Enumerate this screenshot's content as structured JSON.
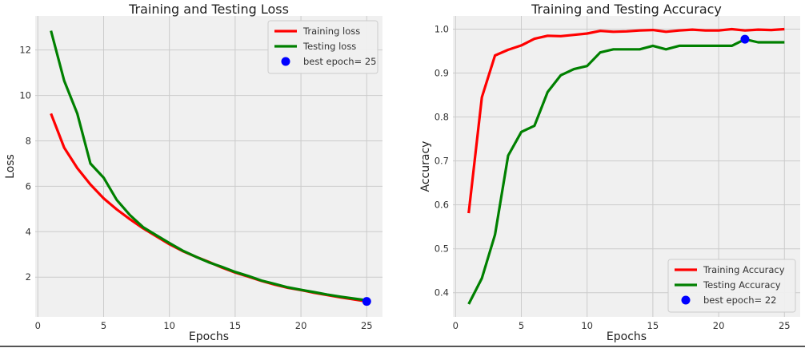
{
  "chart_data": [
    {
      "type": "line",
      "title": "Training and Testing Loss",
      "xlabel": "Epochs",
      "ylabel": "Loss",
      "xlim": [
        -0.2,
        26.2
      ],
      "ylim": [
        0.25,
        13.5
      ],
      "xticks": [
        0,
        5,
        10,
        15,
        20,
        25
      ],
      "yticks": [
        2,
        4,
        6,
        8,
        10,
        12
      ],
      "grid": true,
      "legend_position": "top-right",
      "x": [
        1,
        2,
        3,
        4,
        5,
        6,
        7,
        8,
        9,
        10,
        11,
        12,
        13,
        14,
        15,
        16,
        17,
        18,
        19,
        20,
        21,
        22,
        23,
        24,
        25
      ],
      "series": [
        {
          "name": "Training loss",
          "color": "#ff0000",
          "values": [
            9.2,
            7.7,
            6.8,
            6.08,
            5.47,
            4.98,
            4.55,
            4.15,
            3.8,
            3.45,
            3.15,
            2.9,
            2.67,
            2.42,
            2.2,
            2.02,
            1.83,
            1.67,
            1.53,
            1.43,
            1.31,
            1.21,
            1.11,
            1.02,
            0.93
          ]
        },
        {
          "name": "Testing loss",
          "color": "#008000",
          "values": [
            12.85,
            10.65,
            9.2,
            7.0,
            6.38,
            5.4,
            4.73,
            4.2,
            3.85,
            3.5,
            3.17,
            2.9,
            2.65,
            2.45,
            2.23,
            2.05,
            1.85,
            1.7,
            1.55,
            1.44,
            1.34,
            1.23,
            1.14,
            1.06,
            0.98
          ]
        }
      ],
      "best_point": {
        "label": "best epoch= 25",
        "x": 25,
        "y": 0.93,
        "color": "#0000ff"
      }
    },
    {
      "type": "line",
      "title": "Training and Testing Accuracy",
      "xlabel": "Epochs",
      "ylabel": "Accuracy",
      "xlim": [
        -0.2,
        26.2
      ],
      "ylim": [
        0.345,
        1.03
      ],
      "xticks": [
        0,
        5,
        10,
        15,
        20,
        25
      ],
      "yticks": [
        0.4,
        0.5,
        0.6,
        0.7,
        0.8,
        0.9,
        1.0
      ],
      "ytick_labels": [
        "0.4",
        "0.5",
        "0.6",
        "0.7",
        "0.8",
        "0.9",
        "1.0"
      ],
      "grid": true,
      "legend_position": "bottom-right",
      "x": [
        1,
        2,
        3,
        4,
        5,
        6,
        7,
        8,
        9,
        10,
        11,
        12,
        13,
        14,
        15,
        16,
        17,
        18,
        19,
        20,
        21,
        22,
        23,
        24,
        25
      ],
      "series": [
        {
          "name": "Training Accuracy",
          "color": "#ff0000",
          "values": [
            0.581,
            0.845,
            0.94,
            0.953,
            0.963,
            0.978,
            0.985,
            0.984,
            0.987,
            0.99,
            0.996,
            0.994,
            0.995,
            0.997,
            0.998,
            0.994,
            0.997,
            0.999,
            0.997,
            0.997,
            1.0,
            0.997,
            0.999,
            0.998,
            1.0
          ]
        },
        {
          "name": "Testing Accuracy",
          "color": "#008000",
          "values": [
            0.374,
            0.433,
            0.532,
            0.712,
            0.766,
            0.78,
            0.857,
            0.895,
            0.909,
            0.916,
            0.947,
            0.954,
            0.954,
            0.954,
            0.962,
            0.954,
            0.962,
            0.962,
            0.962,
            0.962,
            0.962,
            0.977,
            0.97,
            0.97,
            0.97
          ]
        }
      ],
      "best_point": {
        "label": "best epoch= 22",
        "x": 22,
        "y": 0.977,
        "color": "#0000ff"
      }
    }
  ]
}
